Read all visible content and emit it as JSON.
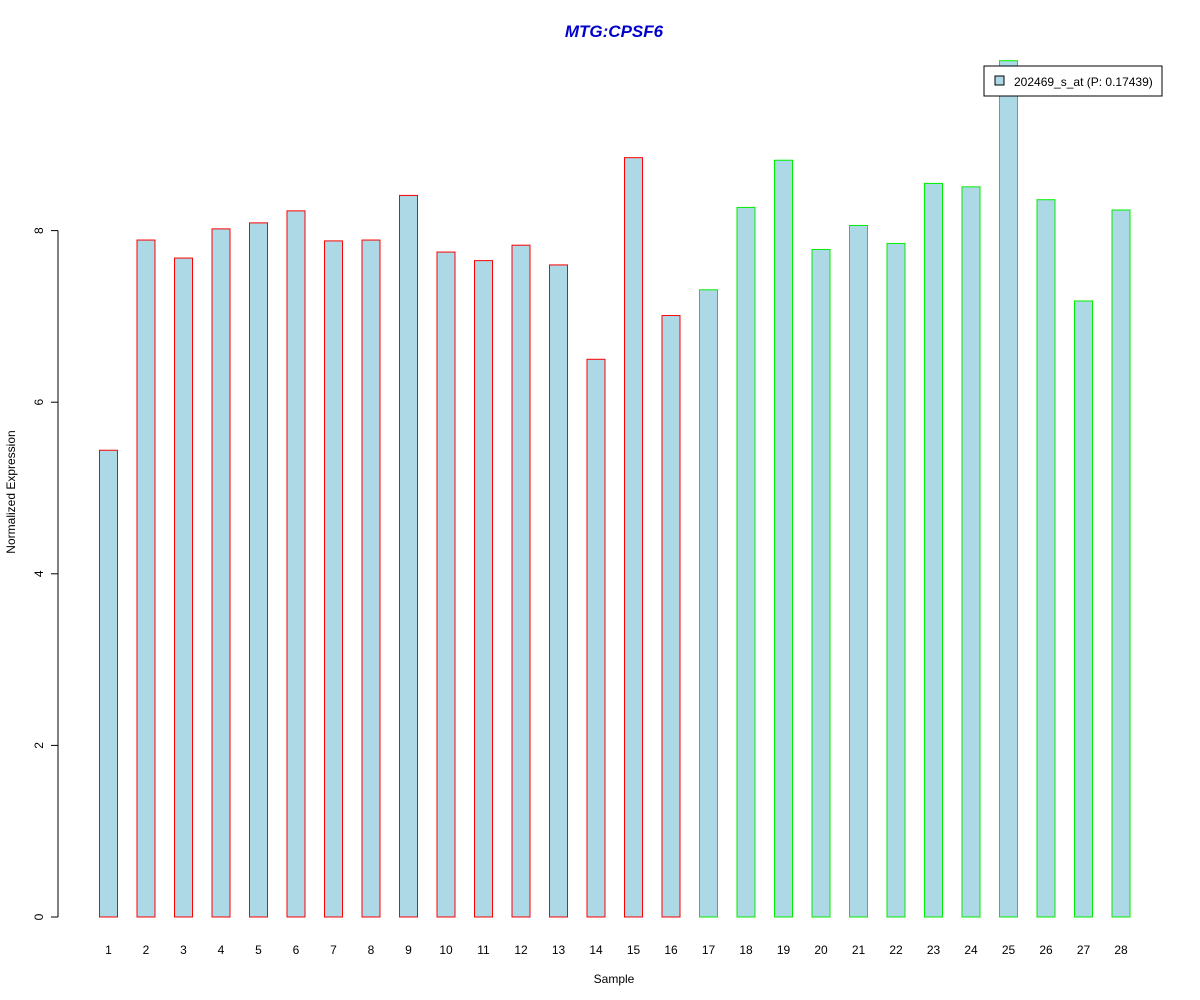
{
  "chart_data": {
    "type": "bar",
    "title": "MTG:CPSF6",
    "xlabel": "Sample",
    "ylabel": "Normalized Expression",
    "categories": [
      "1",
      "2",
      "3",
      "4",
      "5",
      "6",
      "7",
      "8",
      "9",
      "10",
      "11",
      "12",
      "13",
      "14",
      "15",
      "16",
      "17",
      "18",
      "19",
      "20",
      "21",
      "22",
      "23",
      "24",
      "25",
      "26",
      "27",
      "28"
    ],
    "series": [
      {
        "name": "202469_s_at (P: 0.17439)",
        "values": [
          5.44,
          7.89,
          7.68,
          8.02,
          8.09,
          8.23,
          7.88,
          7.89,
          8.41,
          7.75,
          7.65,
          7.83,
          7.6,
          6.5,
          8.85,
          7.01,
          7.31,
          8.27,
          8.82,
          7.78,
          8.06,
          7.85,
          8.55,
          8.51,
          9.98,
          8.36,
          7.18,
          8.24
        ]
      }
    ],
    "groups": [
      1,
      1,
      1,
      1,
      1,
      1,
      1,
      1,
      1,
      1,
      1,
      1,
      1,
      1,
      1,
      1,
      2,
      2,
      2,
      2,
      2,
      2,
      2,
      2,
      2,
      2,
      2,
      2
    ],
    "yticks": [
      "0",
      "2",
      "4",
      "6",
      "8"
    ],
    "ylim": [
      0,
      10
    ],
    "grid": false,
    "legend_position": "top-right",
    "colors": {
      "title": "#0000cc",
      "bar_fill": "#add8e6",
      "group1_border": "#ff0000",
      "group2_border": "#00ee00",
      "axis": "#000000",
      "legend_border": "#000000"
    }
  }
}
